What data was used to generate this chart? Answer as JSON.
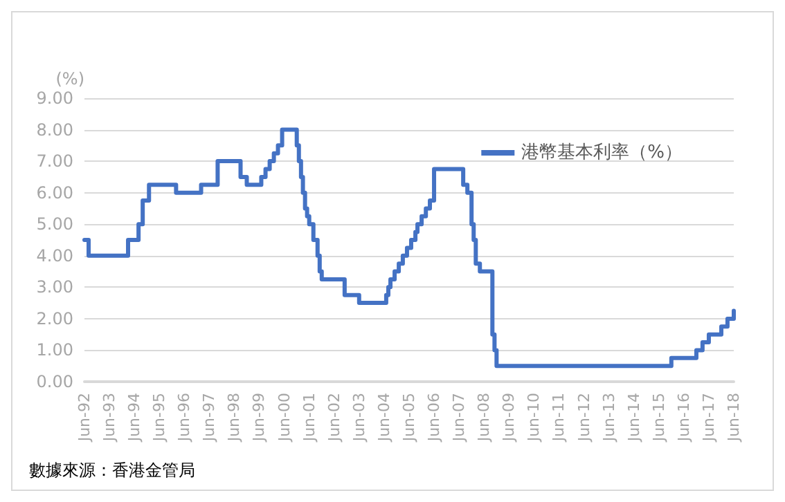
{
  "chart_data": {
    "type": "step",
    "ylabel": "(%)",
    "x": [
      "1992-06",
      "1992-08",
      "1994-03",
      "1994-08",
      "1994-10",
      "1995-01",
      "1996-02",
      "1997-02",
      "1997-10",
      "1998-09",
      "1998-12",
      "1999-07",
      "1999-09",
      "1999-11",
      "2000-01",
      "2000-03",
      "2000-05",
      "2000-12",
      "2001-01",
      "2001-02",
      "2001-03",
      "2001-04",
      "2001-05",
      "2001-06",
      "2001-08",
      "2001-10",
      "2001-11",
      "2001-12",
      "2002-11",
      "2003-06",
      "2004-07",
      "2004-08",
      "2004-09",
      "2004-11",
      "2005-01",
      "2005-03",
      "2005-05",
      "2005-07",
      "2005-09",
      "2005-10",
      "2005-12",
      "2006-02",
      "2006-04",
      "2006-06",
      "2007-08",
      "2007-10",
      "2007-12",
      "2008-01",
      "2008-02",
      "2008-04",
      "2008-10",
      "2008-11",
      "2008-12",
      "2015-12",
      "2016-12",
      "2017-03",
      "2017-06",
      "2017-12",
      "2018-03",
      "2018-06"
    ],
    "series": [
      {
        "name": "港幣基本利率（%）",
        "color": "#4472c4",
        "values": [
          4.5,
          4.0,
          4.5,
          5.0,
          5.75,
          6.25,
          6.0,
          6.25,
          7.0,
          6.5,
          6.25,
          6.5,
          6.75,
          7.0,
          7.25,
          7.5,
          8.0,
          7.5,
          7.0,
          6.5,
          6.0,
          5.5,
          5.25,
          5.0,
          4.5,
          4.0,
          3.5,
          3.25,
          2.75,
          2.5,
          2.75,
          3.0,
          3.25,
          3.5,
          3.75,
          4.0,
          4.25,
          4.5,
          4.75,
          5.0,
          5.25,
          5.5,
          5.75,
          6.75,
          6.25,
          6.0,
          5.0,
          4.5,
          3.75,
          3.5,
          1.5,
          1.0,
          0.5,
          0.75,
          1.0,
          1.25,
          1.5,
          1.75,
          2.0,
          2.25
        ]
      }
    ],
    "xlim": [
      "1992-06",
      "2018-06"
    ],
    "xticks": [
      {
        "value": "1992-06",
        "label": "Jun-92"
      },
      {
        "value": "1993-06",
        "label": "Jun-93"
      },
      {
        "value": "1994-06",
        "label": "Jun-94"
      },
      {
        "value": "1995-06",
        "label": "Jun-95"
      },
      {
        "value": "1996-06",
        "label": "Jun-96"
      },
      {
        "value": "1997-06",
        "label": "Jun-97"
      },
      {
        "value": "1998-06",
        "label": "Jun-98"
      },
      {
        "value": "1999-06",
        "label": "Jun-99"
      },
      {
        "value": "2000-06",
        "label": "Jun-00"
      },
      {
        "value": "2001-06",
        "label": "Jun-01"
      },
      {
        "value": "2002-06",
        "label": "Jun-02"
      },
      {
        "value": "2003-06",
        "label": "Jun-03"
      },
      {
        "value": "2004-06",
        "label": "Jun-04"
      },
      {
        "value": "2005-06",
        "label": "Jun-05"
      },
      {
        "value": "2006-06",
        "label": "Jun-06"
      },
      {
        "value": "2007-06",
        "label": "Jun-07"
      },
      {
        "value": "2008-06",
        "label": "Jun-08"
      },
      {
        "value": "2009-06",
        "label": "Jun-09"
      },
      {
        "value": "2010-06",
        "label": "Jun-10"
      },
      {
        "value": "2011-06",
        "label": "Jun-11"
      },
      {
        "value": "2012-06",
        "label": "Jun-12"
      },
      {
        "value": "2013-06",
        "label": "Jun-13"
      },
      {
        "value": "2014-06",
        "label": "Jun-14"
      },
      {
        "value": "2015-06",
        "label": "Jun-15"
      },
      {
        "value": "2016-06",
        "label": "Jun-16"
      },
      {
        "value": "2017-06",
        "label": "Jun-17"
      },
      {
        "value": "2018-06",
        "label": "Jun-18"
      }
    ],
    "ylim": [
      0,
      9
    ],
    "yticks": [
      {
        "value": 0,
        "label": "0.00"
      },
      {
        "value": 1,
        "label": "1.00"
      },
      {
        "value": 2,
        "label": "2.00"
      },
      {
        "value": 3,
        "label": "3.00"
      },
      {
        "value": 4,
        "label": "4.00"
      },
      {
        "value": 5,
        "label": "5.00"
      },
      {
        "value": 6,
        "label": "6.00"
      },
      {
        "value": 7,
        "label": "7.00"
      },
      {
        "value": 8,
        "label": "8.00"
      },
      {
        "value": 9,
        "label": "9.00"
      }
    ],
    "grid": "y",
    "legend": "top right",
    "annotations": [
      "數據來源：香港金管局"
    ]
  }
}
